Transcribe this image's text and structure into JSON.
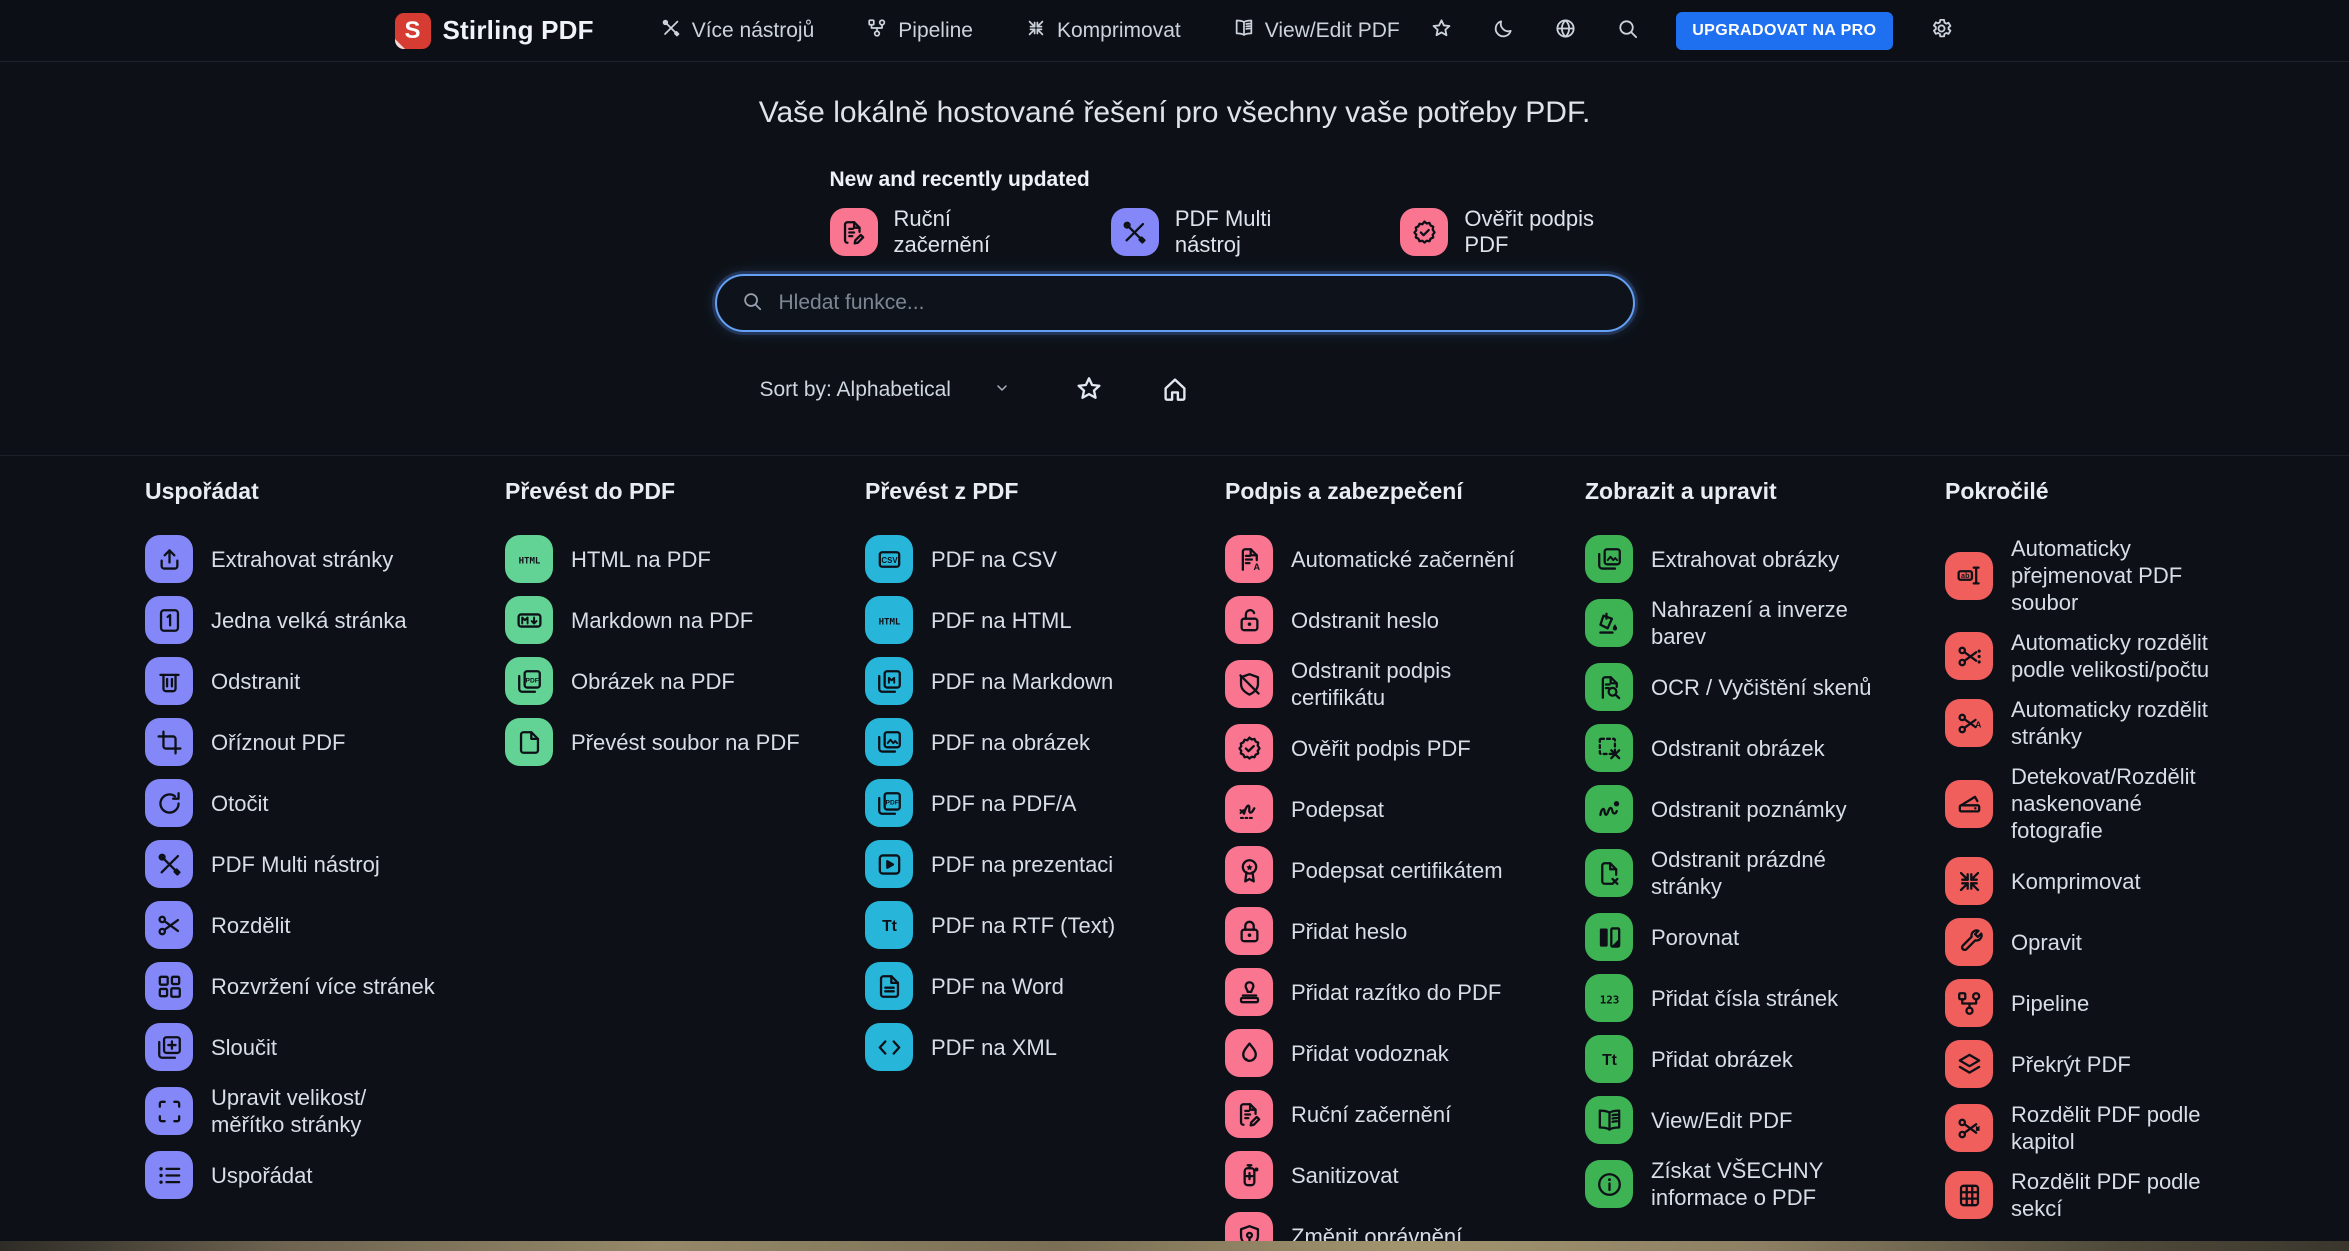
{
  "navbar": {
    "brand": "Stirling PDF",
    "brand_initial": "S",
    "items": [
      {
        "label": "Více nástrojů",
        "icon": "tools-icon"
      },
      {
        "label": "Pipeline",
        "icon": "pipeline-icon"
      },
      {
        "label": "Komprimovat",
        "icon": "compress-icon"
      },
      {
        "label": "View/Edit PDF",
        "icon": "book-icon"
      }
    ],
    "icon_buttons": [
      {
        "name": "favorites-button",
        "icon": "star-icon"
      },
      {
        "name": "theme-toggle-button",
        "icon": "moon-icon"
      },
      {
        "name": "language-button",
        "icon": "globe-icon"
      },
      {
        "name": "search-button",
        "icon": "search-icon"
      }
    ],
    "upgrade_label": "UPGRADOVAT NA PRO",
    "settings_button": {
      "name": "settings-button",
      "icon": "gear-icon"
    }
  },
  "hero": {
    "title": "Vaše lokálně hostované řešení pro všechny vaše potřeby PDF."
  },
  "new_updated": {
    "label": "New and recently updated",
    "items": [
      {
        "label": "Ruční začernění",
        "icon": "manual-redact-icon",
        "color": "#f97590"
      },
      {
        "label": "PDF Multi nástroj",
        "icon": "multi-tool-icon",
        "color": "#8487f7"
      },
      {
        "label": "Ověřit podpis PDF",
        "icon": "badge-check-icon",
        "color": "#f97590"
      }
    ]
  },
  "search": {
    "placeholder": "Hledat funkce..."
  },
  "sort": {
    "label": "Sort by: Alphabetical"
  },
  "colors": {
    "accent_blue": "#1f6ff1",
    "purple": "#8487f7",
    "mint": "#62d394",
    "cyan": "#27b5d9",
    "pink": "#f97590",
    "green": "#3eb354",
    "red": "#f15f5c",
    "search_border": "#64a0f4"
  },
  "columns": [
    {
      "title": "Uspořádat",
      "color": "#8487f7",
      "items": [
        {
          "label": "Extrahovat stránky",
          "icon": "extract-pages-icon"
        },
        {
          "label": "Jedna velká stránka",
          "icon": "single-page-icon"
        },
        {
          "label": "Odstranit",
          "icon": "trash-icon"
        },
        {
          "label": "Oříznout PDF",
          "icon": "crop-icon"
        },
        {
          "label": "Otočit",
          "icon": "rotate-icon"
        },
        {
          "label": "PDF Multi nástroj",
          "icon": "multi-tool-icon"
        },
        {
          "label": "Rozdělit",
          "icon": "scissors-icon"
        },
        {
          "label": "Rozvržení více stránek",
          "icon": "multi-layout-icon"
        },
        {
          "label": "Sloučit",
          "icon": "merge-icon"
        },
        {
          "label": "Upravit velikost/\nměřítko stránky",
          "icon": "resize-icon"
        },
        {
          "label": "Uspořádat",
          "icon": "organize-list-icon"
        }
      ]
    },
    {
      "title": "Převést do PDF",
      "color": "#62d394",
      "items": [
        {
          "label": "HTML na PDF",
          "icon": "html-text-icon"
        },
        {
          "label": "Markdown na PDF",
          "icon": "markdown-icon"
        },
        {
          "label": "Obrázek na PDF",
          "icon": "pdf-stack-icon"
        },
        {
          "label": "Převést soubor na PDF",
          "icon": "file-icon"
        }
      ]
    },
    {
      "title": "Převést z PDF",
      "color": "#27b5d9",
      "items": [
        {
          "label": "PDF na CSV",
          "icon": "csv-icon"
        },
        {
          "label": "PDF na HTML",
          "icon": "html-text-icon"
        },
        {
          "label": "PDF na Markdown",
          "icon": "md-doc-icon"
        },
        {
          "label": "PDF na obrázek",
          "icon": "image-stack-icon"
        },
        {
          "label": "PDF na PDF/A",
          "icon": "pdf-stack-icon"
        },
        {
          "label": "PDF na prezentaci",
          "icon": "presentation-icon"
        },
        {
          "label": "PDF na RTF (Text)",
          "icon": "text-tt-icon"
        },
        {
          "label": "PDF na Word",
          "icon": "word-doc-icon"
        },
        {
          "label": "PDF na XML",
          "icon": "xml-code-icon"
        }
      ]
    },
    {
      "title": "Podpis a zabezpečení",
      "color": "#f97590",
      "items": [
        {
          "label": "Automatické začernění",
          "icon": "auto-redact-icon"
        },
        {
          "label": "Odstranit heslo",
          "icon": "unlock-icon"
        },
        {
          "label": "Odstranit podpis\ncertifikátu",
          "icon": "shield-off-icon"
        },
        {
          "label": "Ověřit podpis PDF",
          "icon": "badge-check-icon"
        },
        {
          "label": "Podepsat",
          "icon": "signature-icon"
        },
        {
          "label": "Podepsat certifikátem",
          "icon": "ribbon-badge-icon"
        },
        {
          "label": "Přidat heslo",
          "icon": "lock-icon"
        },
        {
          "label": "Přidat razítko do PDF",
          "icon": "stamp-icon"
        },
        {
          "label": "Přidat vodoznak",
          "icon": "droplet-icon"
        },
        {
          "label": "Ruční začernění",
          "icon": "manual-redact-icon"
        },
        {
          "label": "Sanitizovat",
          "icon": "sanitize-icon"
        },
        {
          "label": "Změnit oprávnění",
          "icon": "shield-lock-icon"
        }
      ]
    },
    {
      "title": "Zobrazit a upravit",
      "color": "#3eb354",
      "items": [
        {
          "label": "Extrahovat obrázky",
          "icon": "image-stack-icon"
        },
        {
          "label": "Nahrazení a inverze\nbarev",
          "icon": "color-replace-icon"
        },
        {
          "label": "OCR / Vyčištění skenů",
          "icon": "ocr-icon"
        },
        {
          "label": "Odstranit obrázek",
          "icon": "remove-image-icon"
        },
        {
          "label": "Odstranit poznámky",
          "icon": "remove-annotations-icon"
        },
        {
          "label": "Odstranit prázdné\nstránky",
          "icon": "remove-blank-icon"
        },
        {
          "label": "Porovnat",
          "icon": "compare-icon"
        },
        {
          "label": "Přidat čísla stránek",
          "icon": "page-numbers-icon"
        },
        {
          "label": "Přidat obrázek",
          "icon": "text-tt-icon"
        },
        {
          "label": "View/Edit PDF",
          "icon": "book-icon"
        },
        {
          "label": "Získat VŠECHNY\ninformace o PDF",
          "icon": "info-icon"
        }
      ]
    },
    {
      "title": "Pokročilé",
      "color": "#f15f5c",
      "items": [
        {
          "label": "Automaticky\npřejmenovat PDF\nsoubor",
          "icon": "rename-icon"
        },
        {
          "label": "Automaticky rozdělit\npodle velikosti/počtu",
          "icon": "split-dotted-icon"
        },
        {
          "label": "Automaticky rozdělit\nstránky",
          "icon": "split-a-icon"
        },
        {
          "label": "Detekovat/Rozdělit\nnaskenované\nfotografie",
          "icon": "scanner-icon"
        },
        {
          "label": "Komprimovat",
          "icon": "compress-icon"
        },
        {
          "label": "Opravit",
          "icon": "wrench-icon"
        },
        {
          "label": "Pipeline",
          "icon": "pipeline-icon"
        },
        {
          "label": "Překrýt PDF",
          "icon": "layers-icon"
        },
        {
          "label": "Rozdělit PDF podle\nkapitol",
          "icon": "split-bookmark-icon"
        },
        {
          "label": "Rozdělit PDF podle\nsekcí",
          "icon": "grid-sections-icon"
        }
      ]
    }
  ]
}
